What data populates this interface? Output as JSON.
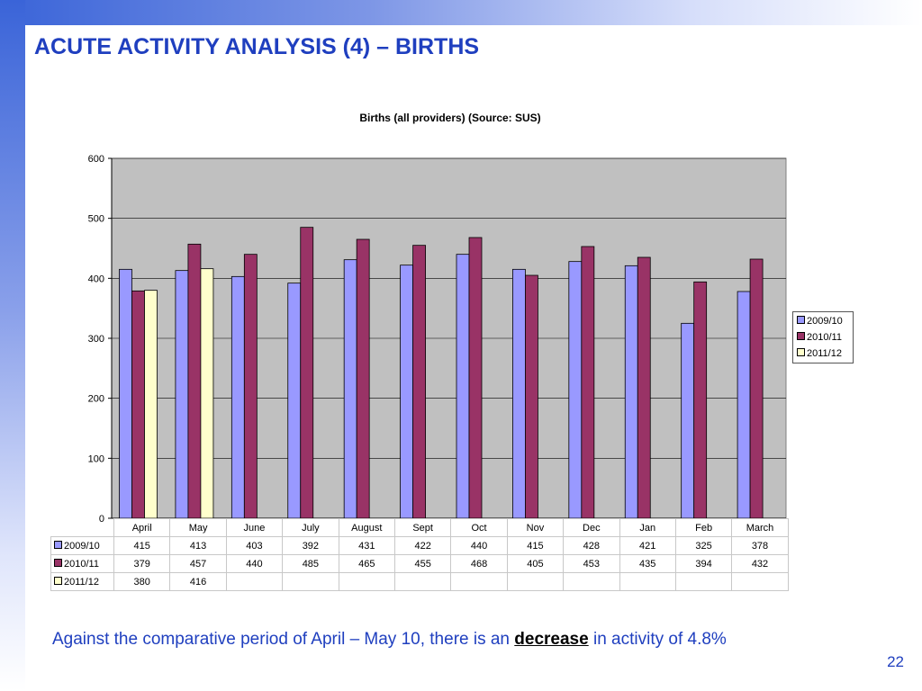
{
  "slide": {
    "title": "ACUTE ACTIVITY ANALYSIS (4) – BIRTHS",
    "footer_pre": "Against the comparative period of April – May 10, there is an ",
    "footer_emph": "decrease",
    "footer_post": " in activity of 4.8%",
    "page_number": "22",
    "colors": {
      "title": "#1f3fbf",
      "band": "#3a64d8"
    }
  },
  "chart_data": {
    "type": "bar",
    "title": "Births (all providers) (Source: SUS)",
    "categories": [
      "April",
      "May",
      "June",
      "July",
      "August",
      "Sept",
      "Oct",
      "Nov",
      "Dec",
      "Jan",
      "Feb",
      "March"
    ],
    "series": [
      {
        "name": "2009/10",
        "color": "#9999ff",
        "values": [
          415,
          413,
          403,
          392,
          431,
          422,
          440,
          415,
          428,
          421,
          325,
          378
        ]
      },
      {
        "name": "2010/11",
        "color": "#993366",
        "values": [
          379,
          457,
          440,
          485,
          465,
          455,
          468,
          405,
          453,
          435,
          394,
          432
        ]
      },
      {
        "name": "2011/12",
        "color": "#ffffcc",
        "values": [
          380,
          416,
          null,
          null,
          null,
          null,
          null,
          null,
          null,
          null,
          null,
          null
        ]
      }
    ],
    "ylim": [
      0,
      600
    ],
    "yticks": [
      0,
      100,
      200,
      300,
      400,
      500,
      600
    ],
    "grid": true,
    "legend": "right",
    "plot_background": "#c0c0c0"
  }
}
